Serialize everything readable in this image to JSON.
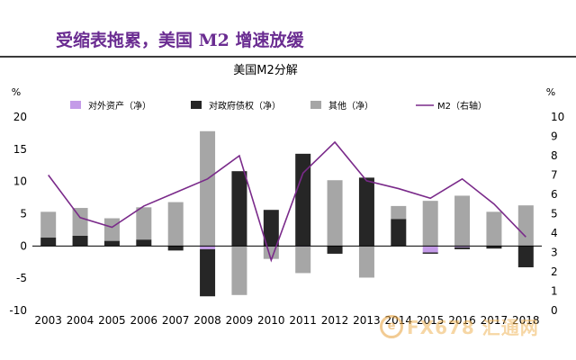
{
  "header": {
    "headline": "受缩表拖累，美国 M2 增速放缓"
  },
  "watermark": {
    "logo_glyph": "e",
    "text": "FX678 汇通网"
  },
  "chart_data": {
    "type": "bar",
    "title": "美国M2分解",
    "left_axis": {
      "unit": "%",
      "ylim": [
        -10,
        20
      ],
      "ticks": [
        "-10",
        "-5",
        "0",
        "5",
        "10",
        "15",
        "20"
      ]
    },
    "right_axis": {
      "unit": "%",
      "ylim": [
        0,
        10
      ],
      "ticks": [
        "0",
        "1",
        "2",
        "3",
        "4",
        "5",
        "6",
        "7",
        "8",
        "9",
        "10"
      ]
    },
    "categories": [
      "2003",
      "2004",
      "2005",
      "2006",
      "2007",
      "2008",
      "2009",
      "2010",
      "2011",
      "2012",
      "2013",
      "2014",
      "2015",
      "2016",
      "2017",
      "2018"
    ],
    "stacked": true,
    "series": [
      {
        "name": "对外资产（净）",
        "kind": "bar",
        "color": "#c49be8",
        "values": [
          0,
          0,
          0,
          0,
          0,
          -0.5,
          0,
          0,
          -0.1,
          0,
          0,
          0,
          -1.0,
          -0.2,
          0,
          0
        ]
      },
      {
        "name": "对政府债权（净）",
        "kind": "bar",
        "color": "#262626",
        "values": [
          1.3,
          1.6,
          0.8,
          1.0,
          -0.7,
          -7.3,
          11.6,
          5.6,
          14.3,
          -1.2,
          10.6,
          4.2,
          -0.2,
          -0.3,
          -0.4,
          -3.3
        ]
      },
      {
        "name": "其他（净）",
        "kind": "bar",
        "color": "#a6a6a6",
        "values": [
          4.0,
          4.3,
          3.5,
          5.0,
          6.8,
          17.8,
          -7.6,
          -2.0,
          -4.1,
          10.2,
          -4.9,
          2.0,
          7.0,
          7.8,
          5.3,
          6.3
        ]
      },
      {
        "name": "M2（右轴）",
        "kind": "line",
        "color": "#7a2a8a",
        "axis": "right",
        "values": [
          7.0,
          4.8,
          4.3,
          5.4,
          6.1,
          6.8,
          8.0,
          2.6,
          7.1,
          8.7,
          6.7,
          6.3,
          5.8,
          6.8,
          5.5,
          3.8
        ]
      }
    ],
    "legend_position": "top",
    "grid": false
  }
}
